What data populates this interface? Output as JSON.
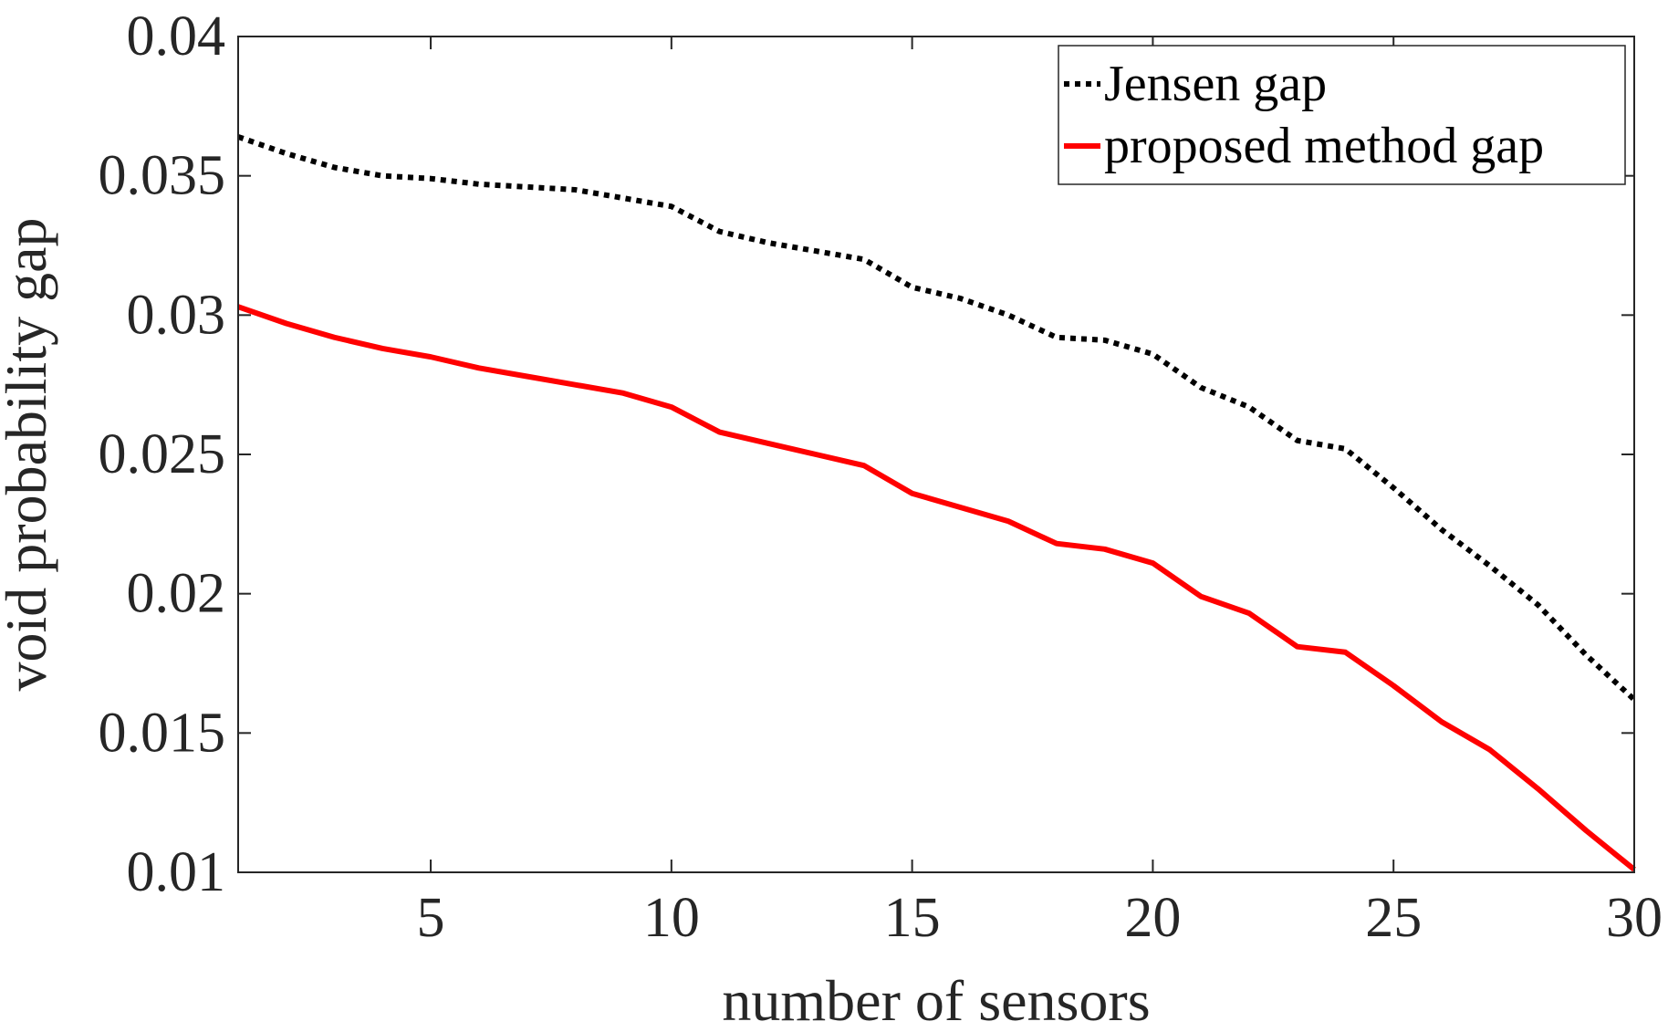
{
  "chart_data": {
    "type": "line",
    "title": "",
    "xlabel": "number of sensors",
    "ylabel": "void probability gap",
    "xlim": [
      1,
      30
    ],
    "ylim": [
      0.01,
      0.04
    ],
    "xticks": [
      5,
      10,
      15,
      20,
      25,
      30
    ],
    "xtick_labels": [
      "5",
      "10",
      "15",
      "20",
      "25",
      "30"
    ],
    "yticks": [
      0.01,
      0.015,
      0.02,
      0.025,
      0.03,
      0.035,
      0.04
    ],
    "ytick_labels": [
      "0.01",
      "0.015",
      "0.02",
      "0.025",
      "0.03",
      "0.035",
      "0.04"
    ],
    "grid": false,
    "legend_position": "top-right",
    "x": [
      1,
      2,
      3,
      4,
      5,
      6,
      7,
      8,
      9,
      10,
      11,
      12,
      13,
      14,
      15,
      16,
      17,
      18,
      19,
      20,
      21,
      22,
      23,
      24,
      25,
      26,
      27,
      28,
      29,
      30
    ],
    "series": [
      {
        "name": "Jensen gap",
        "color": "#000000",
        "style": "dotted",
        "values": [
          0.0364,
          0.0358,
          0.0353,
          0.035,
          0.0349,
          0.0347,
          0.0346,
          0.0345,
          0.0342,
          0.0339,
          0.033,
          0.0326,
          0.0323,
          0.032,
          0.031,
          0.0306,
          0.03,
          0.0292,
          0.0291,
          0.0286,
          0.0274,
          0.0267,
          0.0255,
          0.0252,
          0.0238,
          0.0223,
          0.021,
          0.0196,
          0.0178,
          0.0162
        ]
      },
      {
        "name": "proposed method gap",
        "color": "#ff0000",
        "style": "solid",
        "values": [
          0.0303,
          0.0297,
          0.0292,
          0.0288,
          0.0285,
          0.0281,
          0.0278,
          0.0275,
          0.0272,
          0.0267,
          0.0258,
          0.0254,
          0.025,
          0.0246,
          0.0236,
          0.0231,
          0.0226,
          0.0218,
          0.0216,
          0.0211,
          0.0199,
          0.0193,
          0.0181,
          0.0179,
          0.0167,
          0.0154,
          0.0144,
          0.013,
          0.0115,
          0.0101
        ]
      }
    ]
  }
}
